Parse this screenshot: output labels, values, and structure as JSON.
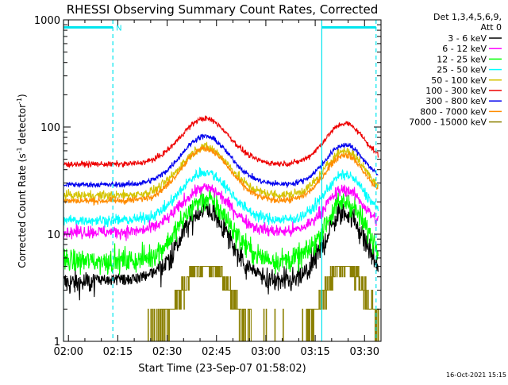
{
  "chart_data": {
    "type": "line",
    "title": "RHESSI Observing Summary Count Rates, Corrected",
    "xlabel": "Start Time (23-Sep-07 01:58:02)",
    "ylabel": "Corrected Count Rate (s",
    "ylabel_sup1": "-1",
    "ylabel_mid": " detector",
    "ylabel_sup2": "-1",
    "ylabel_end": ")",
    "yscale": "log",
    "ylim": [
      1,
      1000
    ],
    "xlim_minutes": [
      118.5,
      215.0
    ],
    "x_ticks": [
      {
        "label": "02:00",
        "t": 120
      },
      {
        "label": "02:15",
        "t": 135
      },
      {
        "label": "02:30",
        "t": 150
      },
      {
        "label": "02:45",
        "t": 165
      },
      {
        "label": "03:00",
        "t": 180
      },
      {
        "label": "03:15",
        "t": 195
      },
      {
        "label": "03:30",
        "t": 210
      }
    ],
    "y_ticks": [
      {
        "label": "1",
        "v": 1
      },
      {
        "label": "10",
        "v": 10
      },
      {
        "label": "100",
        "v": 100
      },
      {
        "label": "1000",
        "v": 1000
      }
    ],
    "legend_header": [
      "Det 1,3,4,5,6,9,",
      "Att 0"
    ],
    "legend_placement": "right",
    "grid": false,
    "orbit_flag_label": "N",
    "orbit_markers": {
      "solid_minutes": [
        118.5,
        197.0
      ],
      "dashed_minutes": [
        133.5,
        213.5
      ],
      "flag_bars": [
        [
          118.5,
          133.5
        ],
        [
          197.0,
          213.5
        ]
      ],
      "flag_level": 850,
      "color": "#00e5ee"
    },
    "series": [
      {
        "name": "3 - 6 keV",
        "color": "#000000",
        "baseline": 3.5,
        "peak1": 17,
        "peak2": 16,
        "noise": 0.14
      },
      {
        "name": "6 - 12 keV",
        "color": "#ff00ff",
        "baseline": 10.5,
        "peak1": 27,
        "peak2": 26,
        "noise": 0.07
      },
      {
        "name": "12 - 25 keV",
        "color": "#00ff00",
        "baseline": 5.6,
        "peak1": 21,
        "peak2": 20,
        "noise": 0.13
      },
      {
        "name": "25 - 50 keV",
        "color": "#00ffff",
        "baseline": 13.5,
        "peak1": 38,
        "peak2": 36,
        "noise": 0.06
      },
      {
        "name": "50 - 100 keV",
        "color": "#d4c400",
        "baseline": 23,
        "peak1": 65,
        "peak2": 60,
        "noise": 0.05
      },
      {
        "name": "100 - 300 keV",
        "color": "#ee0000",
        "baseline": 45,
        "peak1": 120,
        "peak2": 108,
        "noise": 0.03
      },
      {
        "name": "300 - 800 keV",
        "color": "#0000ee",
        "baseline": 29,
        "peak1": 82,
        "peak2": 68,
        "noise": 0.03
      },
      {
        "name": "800 - 7000 keV",
        "color": "#ff8c00",
        "baseline": 20.5,
        "peak1": 63,
        "peak2": 55,
        "noise": 0.035
      },
      {
        "name": "7000 - 15000 keV",
        "color": "#8b8000",
        "baseline": 1,
        "peak1": 5,
        "peak2": 5,
        "noise": 0,
        "stepped": true
      }
    ],
    "peak_minutes": [
      161.5,
      204.0
    ]
  },
  "footer_timestamp": "16-Oct-2021 15:15"
}
